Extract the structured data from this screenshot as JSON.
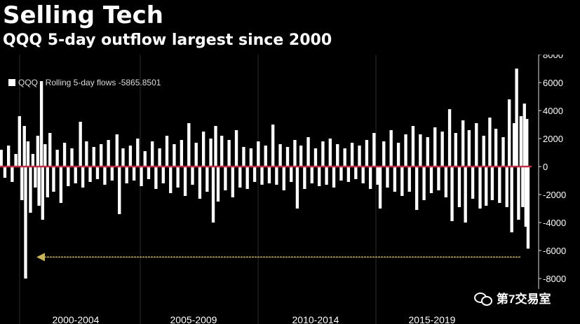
{
  "header": {
    "title": "Selling Tech",
    "subtitle": "QQQ 5-day outflow largest since 2000"
  },
  "watermark": {
    "text": "第7交易室",
    "icon": "wechat-icon"
  },
  "colors": {
    "background": "#000000",
    "bars": "#ffffff",
    "zero_line": "#c0304a",
    "arrow": "#c8b45a",
    "grid": "#2a2a2a"
  },
  "chart_data": {
    "type": "bar",
    "title": "Selling Tech",
    "subtitle": "QQQ 5-day outflow largest since 2000",
    "legend": {
      "label": "QQQ - Rolling 5-day flows -5865.8501",
      "position": "top-left"
    },
    "ylim": [
      -9000,
      8000
    ],
    "y_ticks": [
      8000,
      6000,
      4000,
      2000,
      0,
      -2000,
      -4000,
      -6000,
      -8000
    ],
    "y_axis_side": "right",
    "x_tick_labels": [
      "2000-2004",
      "2005-2009",
      "2010-2014",
      "2015-2019"
    ],
    "x_range": [
      1999.0,
      2020.7
    ],
    "grid": true,
    "annotation": "arrow pointing left at the -5866 level",
    "latest_value": -5865.8501,
    "series": [
      {
        "name": "QQQ - Rolling 5-day flows",
        "points": [
          [
            1999.05,
            1200
          ],
          [
            1999.2,
            -800
          ],
          [
            1999.35,
            1500
          ],
          [
            1999.5,
            -1100
          ],
          [
            1999.65,
            900
          ],
          [
            1999.8,
            3600
          ],
          [
            1999.9,
            -2400
          ],
          [
            2000.0,
            2900
          ],
          [
            2000.05,
            -8000
          ],
          [
            2000.15,
            1800
          ],
          [
            2000.25,
            -3300
          ],
          [
            2000.35,
            900
          ],
          [
            2000.45,
            -1500
          ],
          [
            2000.55,
            2200
          ],
          [
            2000.6,
            -2800
          ],
          [
            2000.7,
            6100
          ],
          [
            2000.75,
            -3800
          ],
          [
            2000.85,
            1600
          ],
          [
            2000.95,
            -2200
          ],
          [
            2001.05,
            2400
          ],
          [
            2001.2,
            -1800
          ],
          [
            2001.35,
            1200
          ],
          [
            2001.5,
            -2600
          ],
          [
            2001.65,
            1700
          ],
          [
            2001.8,
            -1400
          ],
          [
            2001.95,
            1300
          ],
          [
            2002.1,
            -1200
          ],
          [
            2002.3,
            3200
          ],
          [
            2002.4,
            -1500
          ],
          [
            2002.55,
            1800
          ],
          [
            2002.7,
            -1100
          ],
          [
            2002.85,
            1400
          ],
          [
            2003.0,
            -900
          ],
          [
            2003.15,
            1600
          ],
          [
            2003.3,
            -1300
          ],
          [
            2003.45,
            1900
          ],
          [
            2003.6,
            -1000
          ],
          [
            2003.8,
            2300
          ],
          [
            2003.9,
            -3400
          ],
          [
            2004.05,
            1300
          ],
          [
            2004.2,
            -1200
          ],
          [
            2004.35,
            1500
          ],
          [
            2004.5,
            -1000
          ],
          [
            2004.65,
            2000
          ],
          [
            2004.8,
            -1400
          ],
          [
            2004.95,
            1100
          ],
          [
            2005.1,
            -900
          ],
          [
            2005.25,
            1800
          ],
          [
            2005.4,
            -1600
          ],
          [
            2005.55,
            1300
          ],
          [
            2005.7,
            -1200
          ],
          [
            2005.85,
            2200
          ],
          [
            2006.0,
            -1900
          ],
          [
            2006.15,
            1600
          ],
          [
            2006.3,
            -1500
          ],
          [
            2006.45,
            1900
          ],
          [
            2006.6,
            -2100
          ],
          [
            2006.75,
            3100
          ],
          [
            2006.9,
            -1300
          ],
          [
            2007.05,
            1700
          ],
          [
            2007.2,
            -2300
          ],
          [
            2007.35,
            2500
          ],
          [
            2007.5,
            -1800
          ],
          [
            2007.65,
            2000
          ],
          [
            2007.75,
            -4000
          ],
          [
            2007.85,
            2900
          ],
          [
            2007.95,
            -2500
          ],
          [
            2008.1,
            2200
          ],
          [
            2008.25,
            -1700
          ],
          [
            2008.4,
            1900
          ],
          [
            2008.55,
            -2200
          ],
          [
            2008.7,
            2600
          ],
          [
            2008.85,
            -1500
          ],
          [
            2009.0,
            1400
          ],
          [
            2009.15,
            -1600
          ],
          [
            2009.3,
            1300
          ],
          [
            2009.45,
            -1100
          ],
          [
            2009.6,
            1800
          ],
          [
            2009.75,
            -1300
          ],
          [
            2009.9,
            1500
          ],
          [
            2010.05,
            -1200
          ],
          [
            2010.2,
            3000
          ],
          [
            2010.35,
            -1300
          ],
          [
            2010.5,
            1600
          ],
          [
            2010.65,
            -1700
          ],
          [
            2010.8,
            1400
          ],
          [
            2010.95,
            -1100
          ],
          [
            2011.1,
            1900
          ],
          [
            2011.2,
            -3000
          ],
          [
            2011.35,
            1500
          ],
          [
            2011.5,
            -1600
          ],
          [
            2011.65,
            2100
          ],
          [
            2011.8,
            -1200
          ],
          [
            2011.95,
            1300
          ],
          [
            2012.1,
            -1400
          ],
          [
            2012.25,
            1800
          ],
          [
            2012.4,
            -1300
          ],
          [
            2012.55,
            2000
          ],
          [
            2012.7,
            -1500
          ],
          [
            2012.85,
            1600
          ],
          [
            2013.0,
            -1000
          ],
          [
            2013.15,
            1300
          ],
          [
            2013.3,
            -1100
          ],
          [
            2013.45,
            1700
          ],
          [
            2013.6,
            -900
          ],
          [
            2013.75,
            1500
          ],
          [
            2013.9,
            -1200
          ],
          [
            2014.05,
            1900
          ],
          [
            2014.2,
            -1600
          ],
          [
            2014.35,
            2400
          ],
          [
            2014.5,
            -1300
          ],
          [
            2014.6,
            -3000
          ],
          [
            2014.75,
            1800
          ],
          [
            2014.9,
            -1500
          ],
          [
            2015.05,
            2600
          ],
          [
            2015.2,
            -1800
          ],
          [
            2015.35,
            1700
          ],
          [
            2015.5,
            -2100
          ],
          [
            2015.65,
            2300
          ],
          [
            2015.8,
            -1800
          ],
          [
            2015.95,
            2900
          ],
          [
            2016.1,
            -3100
          ],
          [
            2016.25,
            2300
          ],
          [
            2016.4,
            -2400
          ],
          [
            2016.55,
            2100
          ],
          [
            2016.7,
            -1900
          ],
          [
            2016.85,
            2800
          ],
          [
            2017.0,
            -1700
          ],
          [
            2017.15,
            2500
          ],
          [
            2017.3,
            -2200
          ],
          [
            2017.45,
            4100
          ],
          [
            2017.55,
            -3900
          ],
          [
            2017.7,
            2400
          ],
          [
            2017.85,
            -2900
          ],
          [
            2018.0,
            3300
          ],
          [
            2018.1,
            -4000
          ],
          [
            2018.25,
            2600
          ],
          [
            2018.4,
            -2300
          ],
          [
            2018.55,
            3100
          ],
          [
            2018.7,
            -3000
          ],
          [
            2018.85,
            2200
          ],
          [
            2018.95,
            -2800
          ],
          [
            2019.1,
            3500
          ],
          [
            2019.2,
            -2400
          ],
          [
            2019.35,
            2700
          ],
          [
            2019.5,
            -2600
          ],
          [
            2019.65,
            2100
          ],
          [
            2019.8,
            -2900
          ],
          [
            2019.9,
            4800
          ],
          [
            2020.0,
            -4700
          ],
          [
            2020.1,
            3100
          ],
          [
            2020.2,
            7000
          ],
          [
            2020.28,
            -3800
          ],
          [
            2020.38,
            3600
          ],
          [
            2020.45,
            -2900
          ],
          [
            2020.52,
            4500
          ],
          [
            2020.58,
            -4300
          ],
          [
            2020.62,
            3400
          ],
          [
            2020.67,
            -5866
          ]
        ]
      }
    ]
  }
}
